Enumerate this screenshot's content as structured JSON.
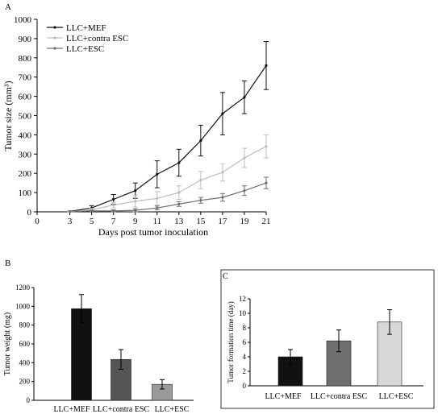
{
  "chart_data": [
    {
      "panel": "A",
      "type": "line",
      "title": "",
      "xlabel": "Days post tumor inoculation",
      "ylabel": "Tumor size (mm³)",
      "xlim": [
        0,
        21
      ],
      "ylim": [
        0,
        1000
      ],
      "xticks": [
        0,
        3,
        5,
        7,
        9,
        11,
        13,
        15,
        17,
        19,
        21
      ],
      "yticks": [
        0,
        100,
        200,
        300,
        400,
        500,
        600,
        700,
        800,
        900,
        1000
      ],
      "x": [
        3,
        5,
        7,
        9,
        11,
        13,
        15,
        17,
        19,
        21
      ],
      "legend_position": "top-left",
      "grid": false,
      "series": [
        {
          "name": "LLC+MEF",
          "color": "#111111",
          "values": [
            2,
            20,
            65,
            110,
            195,
            255,
            370,
            510,
            595,
            760
          ],
          "errors": [
            2,
            12,
            25,
            40,
            70,
            70,
            80,
            110,
            85,
            125
          ]
        },
        {
          "name": "LLC+contra ESC",
          "color": "#bdbdbd",
          "values": [
            1,
            10,
            35,
            55,
            70,
            100,
            165,
            205,
            280,
            340
          ],
          "errors": [
            1,
            8,
            15,
            30,
            35,
            35,
            45,
            45,
            50,
            60
          ]
        },
        {
          "name": "LLC+ESC",
          "color": "#6e6e6e",
          "values": [
            0,
            5,
            5,
            8,
            20,
            40,
            60,
            75,
            110,
            150
          ],
          "errors": [
            0,
            3,
            5,
            8,
            10,
            12,
            15,
            20,
            25,
            30
          ]
        }
      ]
    },
    {
      "panel": "B",
      "type": "bar",
      "title": "",
      "xlabel": "",
      "ylabel": "Tumor weight (mg)",
      "ylim": [
        0,
        1200
      ],
      "yticks": [
        0,
        200,
        400,
        600,
        800,
        1000,
        1200
      ],
      "categories": [
        "LLC+MEF",
        "LLC+contra ESC",
        "LLC+ESC"
      ],
      "values": [
        975,
        435,
        170
      ],
      "errors": [
        150,
        105,
        50
      ],
      "colors": [
        "#111111",
        "#555555",
        "#9a9a9a"
      ]
    },
    {
      "panel": "C",
      "type": "bar",
      "title": "",
      "xlabel": "",
      "ylabel": "Tumor formation time (day)",
      "ylim": [
        0,
        12
      ],
      "yticks": [
        0,
        2,
        4,
        6,
        8,
        10,
        12
      ],
      "categories": [
        "LLC+MEF",
        "LLC+contra ESC",
        "LLC+ESC"
      ],
      "values": [
        4.0,
        6.2,
        8.8
      ],
      "errors": [
        1.0,
        1.5,
        1.7
      ],
      "colors": [
        "#111111",
        "#707070",
        "#d8d8d8"
      ]
    }
  ]
}
